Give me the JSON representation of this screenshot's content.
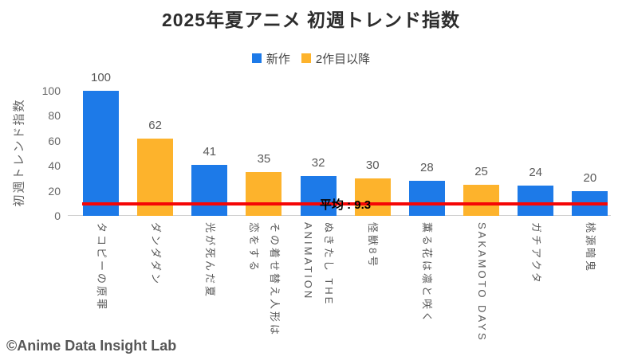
{
  "footer": {
    "credit": "©Anime Data Insight Lab"
  },
  "chart_data": {
    "type": "bar",
    "title": "2025年夏アニメ 初週トレンド指数",
    "xlabel": "",
    "ylabel": "初週トレンド指数",
    "ylim": [
      0,
      100
    ],
    "yticks": [
      0,
      20,
      40,
      60,
      80,
      100
    ],
    "grid": false,
    "legend_position": "top-center",
    "legend": [
      {
        "label": "新作",
        "color": "#1d7ae8"
      },
      {
        "label": "2作目以降",
        "color": "#fdb32c"
      }
    ],
    "categories": [
      "タコピーの原罪",
      "ダンダダン",
      "光が死んだ夏",
      "その着せ替え人形は恋をする",
      "ぬきたし THE ANIMATION",
      "怪獣8号",
      "薫る花は凛と咲く",
      "SAKAMOTO DAYS",
      "ガチアクタ",
      "桃源暗鬼"
    ],
    "values": [
      100,
      62,
      41,
      35,
      32,
      30,
      28,
      25,
      24,
      20
    ],
    "bar_series": [
      "新作",
      "2作目以降",
      "新作",
      "2作目以降",
      "新作",
      "2作目以降",
      "新作",
      "2作目以降",
      "新作",
      "新作"
    ],
    "tick_label_lines": [
      [
        "タコピーの原罪"
      ],
      [
        "ダンダダン"
      ],
      [
        "光が死んだ夏"
      ],
      [
        "その着せ替え人形は",
        "恋をする"
      ],
      [
        "ぬきたし THE",
        "ANIMATION"
      ],
      [
        "怪獣8号"
      ],
      [
        "薫る花は凛と咲く"
      ],
      [
        "SAKAMOTO DAYS"
      ],
      [
        "ガチアクタ"
      ],
      [
        "桃源暗鬼"
      ]
    ],
    "average_line": {
      "label": "平均 : 9.3",
      "value": 9.3,
      "color": "#f50606"
    }
  }
}
